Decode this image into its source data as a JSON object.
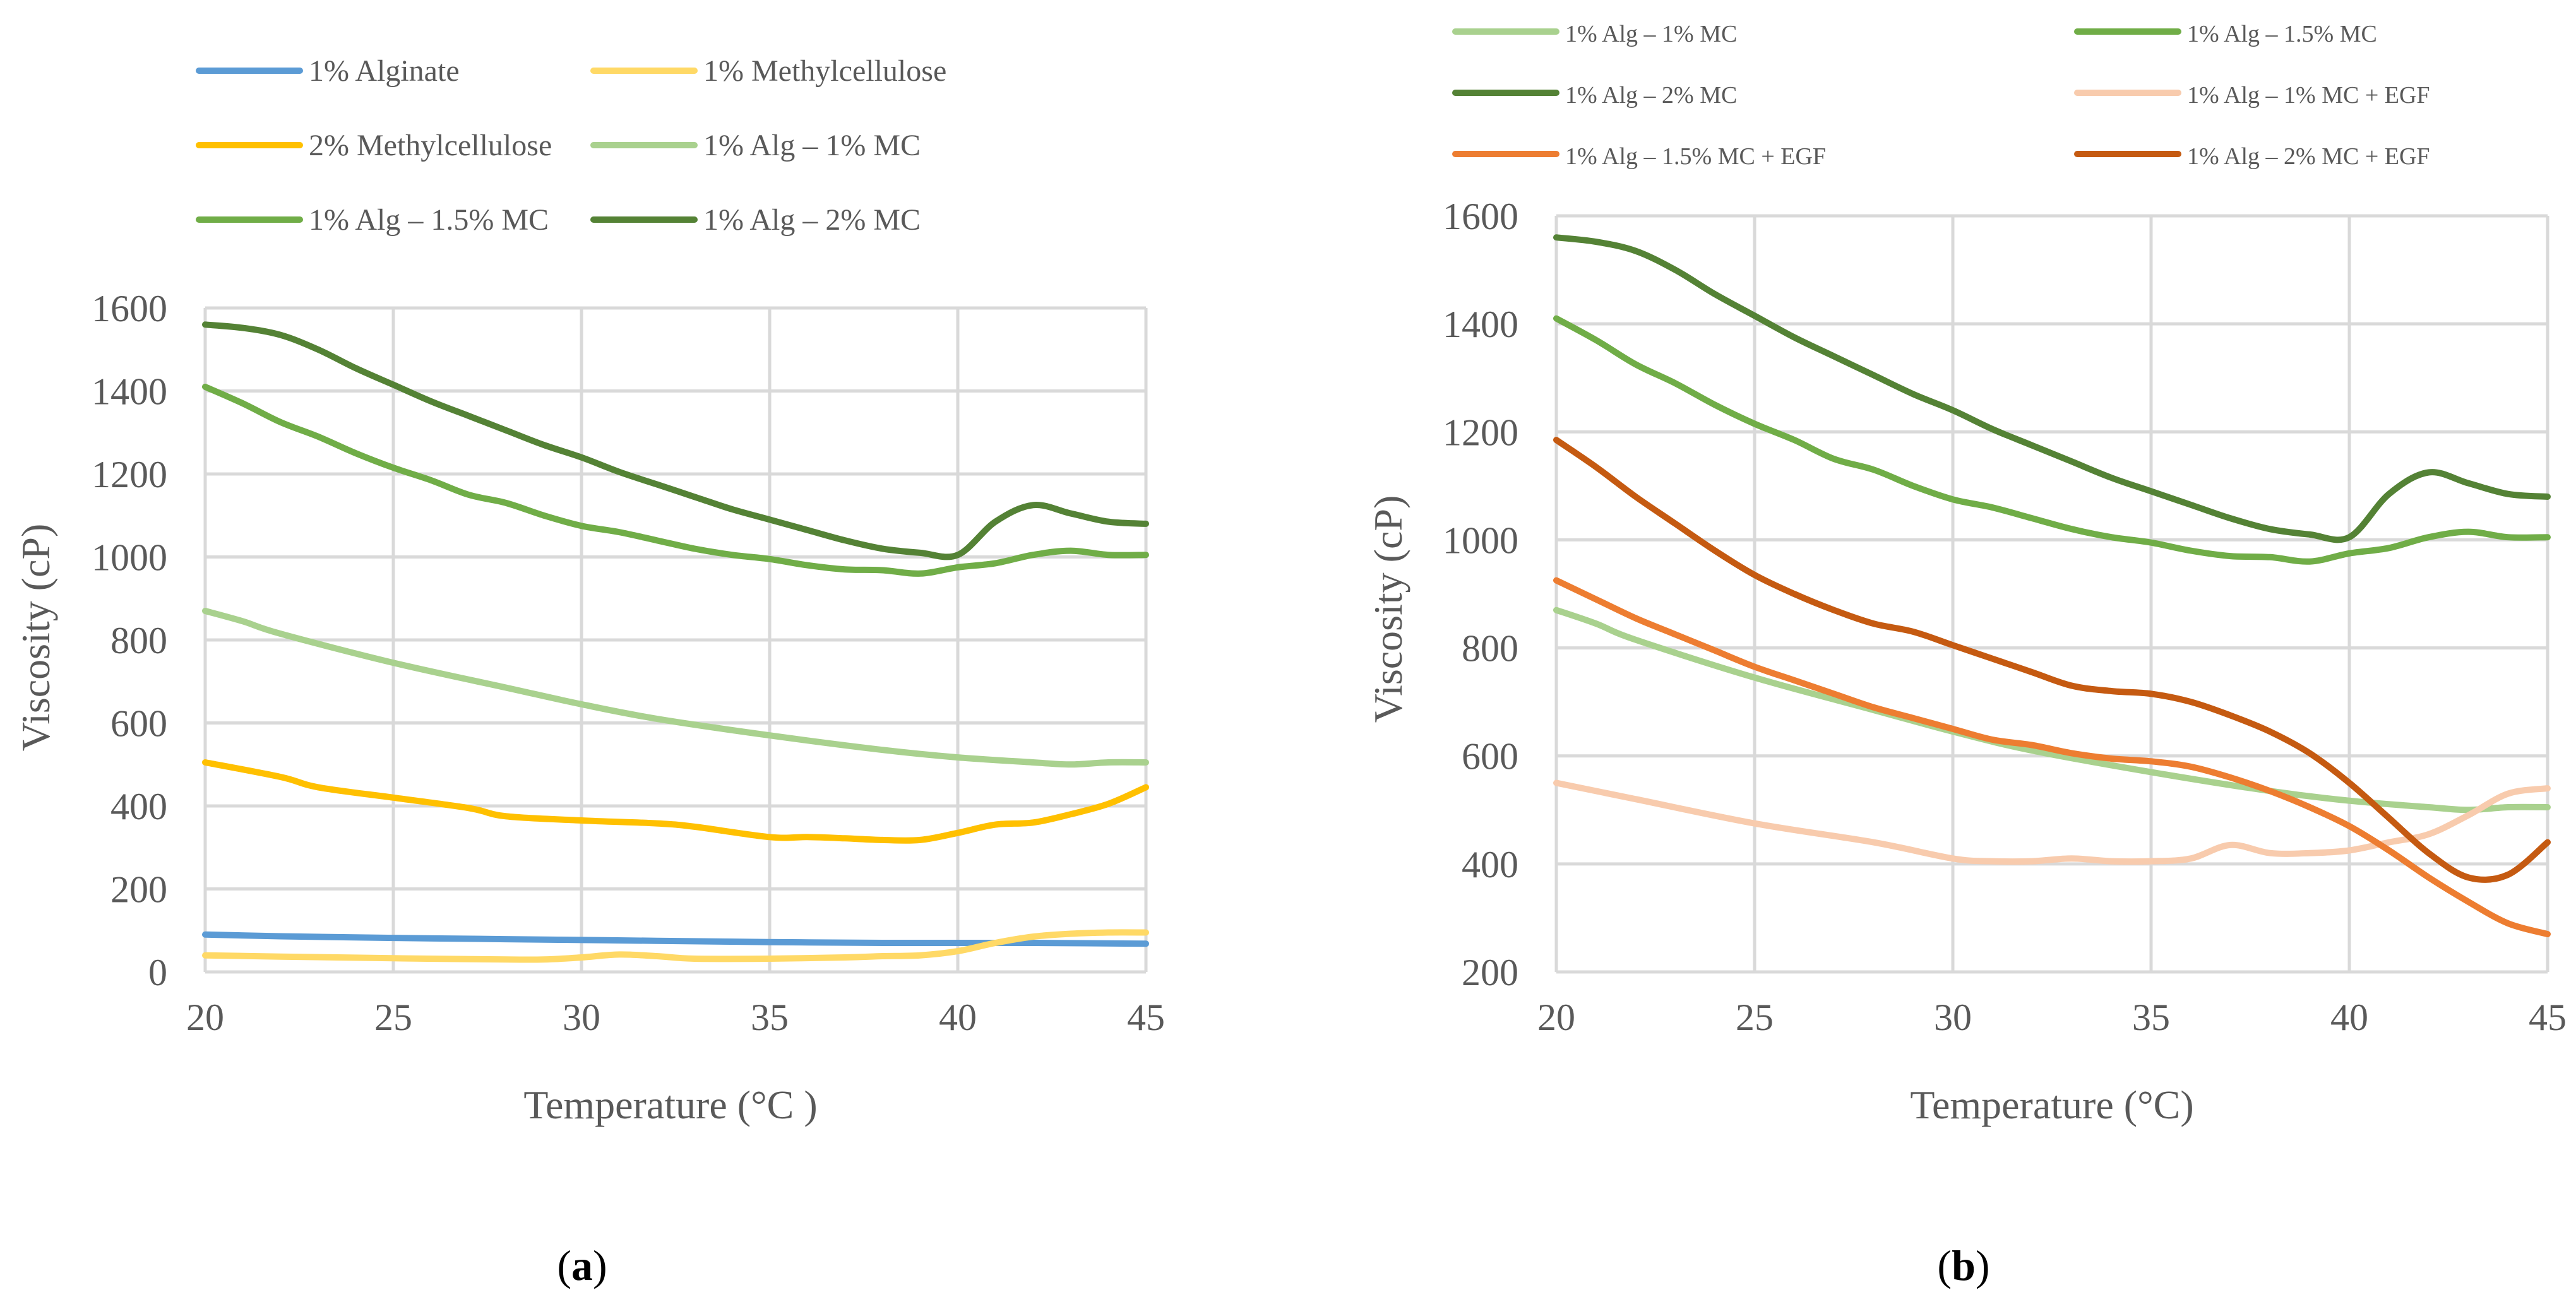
{
  "chart_data": [
    {
      "panel": "a",
      "type": "line",
      "xlabel": "Temperature (°C )",
      "ylabel": "Viscosity (cP)",
      "xlim": [
        20,
        45
      ],
      "ylim": [
        0,
        1600
      ],
      "xticks": [
        20,
        25,
        30,
        35,
        40,
        45
      ],
      "yticks": [
        0,
        200,
        400,
        600,
        800,
        1000,
        1200,
        1400,
        1600
      ],
      "grid": true,
      "legend_position": "top",
      "series": [
        {
          "name": "1% Alginate",
          "color": "#5B9BD5",
          "x": [
            20,
            22,
            25,
            28,
            30,
            32,
            35,
            38,
            40,
            42,
            45
          ],
          "y": [
            90,
            86,
            82,
            79,
            77,
            75,
            72,
            70,
            70,
            70,
            68
          ]
        },
        {
          "name": "1% Methylcellulose",
          "color": "#FFD966",
          "x": [
            20,
            22,
            25,
            28,
            29,
            30,
            31,
            32,
            33,
            35,
            37,
            38,
            39,
            40,
            41,
            42,
            43,
            44,
            45
          ],
          "y": [
            40,
            37,
            33,
            30,
            30,
            35,
            42,
            38,
            32,
            32,
            35,
            38,
            40,
            50,
            70,
            85,
            92,
            95,
            95
          ]
        },
        {
          "name": "2% Methylcellulose",
          "color": "#FFC000",
          "x": [
            20,
            22,
            23,
            25,
            27,
            28,
            30,
            32,
            33,
            35,
            36,
            37,
            38,
            39,
            40,
            41,
            42,
            43,
            44,
            45
          ],
          "y": [
            505,
            470,
            445,
            420,
            395,
            375,
            365,
            358,
            350,
            325,
            325,
            322,
            318,
            318,
            335,
            355,
            360,
            380,
            405,
            445
          ]
        },
        {
          "name": "1% Alg – 1% MC",
          "color": "#A9D18E",
          "x": [
            20,
            21,
            22,
            25,
            28,
            30,
            32,
            35,
            38,
            40,
            42,
            43,
            44,
            45
          ],
          "y": [
            870,
            845,
            815,
            745,
            685,
            645,
            610,
            570,
            535,
            517,
            505,
            500,
            505,
            505
          ]
        },
        {
          "name": "1% Alg – 1.5% MC",
          "color": "#70AD47",
          "x": [
            20,
            21,
            22,
            23,
            24,
            25,
            26,
            27,
            28,
            29,
            30,
            31,
            32,
            33,
            34,
            35,
            36,
            37,
            38,
            39,
            40,
            41,
            42,
            43,
            44,
            45
          ],
          "y": [
            1410,
            1370,
            1325,
            1290,
            1250,
            1215,
            1185,
            1150,
            1130,
            1100,
            1075,
            1060,
            1040,
            1020,
            1005,
            995,
            980,
            970,
            968,
            960,
            975,
            985,
            1005,
            1015,
            1005,
            1005
          ]
        },
        {
          "name": "1% Alg – 2% MC",
          "color": "#548235",
          "x": [
            20,
            21,
            22,
            23,
            24,
            25,
            26,
            27,
            28,
            29,
            30,
            31,
            32,
            33,
            34,
            35,
            36,
            37,
            38,
            39,
            40,
            41,
            42,
            43,
            44,
            45
          ],
          "y": [
            1560,
            1552,
            1535,
            1500,
            1455,
            1415,
            1375,
            1340,
            1305,
            1270,
            1240,
            1205,
            1175,
            1145,
            1115,
            1090,
            1065,
            1040,
            1020,
            1010,
            1005,
            1085,
            1125,
            1105,
            1085,
            1080
          ]
        }
      ]
    },
    {
      "panel": "b",
      "type": "line",
      "xlabel": "Temperature (°C)",
      "ylabel": "Viscosity (cP)",
      "xlim": [
        20,
        45
      ],
      "ylim": [
        200,
        1600
      ],
      "xticks": [
        20,
        25,
        30,
        35,
        40,
        45
      ],
      "yticks": [
        200,
        400,
        600,
        800,
        1000,
        1200,
        1400,
        1600
      ],
      "grid": true,
      "legend_position": "top",
      "series": [
        {
          "name": "1% Alg – 1% MC",
          "color": "#A9D18E",
          "x": [
            20,
            21,
            22,
            25,
            28,
            30,
            32,
            35,
            38,
            40,
            42,
            43,
            44,
            45
          ],
          "y": [
            870,
            845,
            815,
            745,
            685,
            645,
            610,
            570,
            535,
            517,
            505,
            500,
            505,
            505
          ]
        },
        {
          "name": "1% Alg – 1.5% MC",
          "color": "#70AD47",
          "x": [
            20,
            21,
            22,
            23,
            24,
            25,
            26,
            27,
            28,
            29,
            30,
            31,
            32,
            33,
            34,
            35,
            36,
            37,
            38,
            39,
            40,
            41,
            42,
            43,
            44,
            45
          ],
          "y": [
            1410,
            1370,
            1325,
            1290,
            1250,
            1215,
            1185,
            1150,
            1130,
            1100,
            1075,
            1060,
            1040,
            1020,
            1005,
            995,
            980,
            970,
            968,
            960,
            975,
            985,
            1005,
            1015,
            1005,
            1005
          ]
        },
        {
          "name": "1% Alg – 2% MC",
          "color": "#548235",
          "x": [
            20,
            21,
            22,
            23,
            24,
            25,
            26,
            27,
            28,
            29,
            30,
            31,
            32,
            33,
            34,
            35,
            36,
            37,
            38,
            39,
            40,
            41,
            42,
            43,
            44,
            45
          ],
          "y": [
            1560,
            1552,
            1535,
            1500,
            1455,
            1415,
            1375,
            1340,
            1305,
            1270,
            1240,
            1205,
            1175,
            1145,
            1115,
            1090,
            1065,
            1040,
            1020,
            1010,
            1005,
            1085,
            1125,
            1105,
            1085,
            1080
          ]
        },
        {
          "name": "1% Alg – 1% MC + EGF",
          "color": "#F8CBAD",
          "x": [
            20,
            22,
            25,
            28,
            30,
            31,
            32,
            33,
            34,
            35,
            36,
            37,
            38,
            39,
            40,
            41,
            42,
            43,
            44,
            45
          ],
          "y": [
            550,
            520,
            475,
            440,
            410,
            405,
            405,
            410,
            405,
            405,
            410,
            435,
            420,
            420,
            425,
            440,
            455,
            490,
            530,
            540
          ]
        },
        {
          "name": "1% Alg – 1.5% MC + EGF",
          "color": "#ED7D31",
          "x": [
            20,
            21,
            22,
            23,
            24,
            25,
            26,
            27,
            28,
            29,
            30,
            31,
            32,
            33,
            34,
            35,
            36,
            37,
            38,
            39,
            40,
            41,
            42,
            43,
            44,
            45
          ],
          "y": [
            925,
            890,
            855,
            825,
            795,
            765,
            740,
            715,
            690,
            670,
            650,
            630,
            620,
            605,
            595,
            590,
            580,
            560,
            535,
            505,
            470,
            425,
            375,
            330,
            290,
            270
          ]
        },
        {
          "name": "1% Alg – 2% MC + EGF",
          "color": "#C55A11",
          "x": [
            20,
            21,
            22,
            23,
            24,
            25,
            26,
            27,
            28,
            29,
            30,
            31,
            32,
            33,
            34,
            35,
            36,
            37,
            38,
            39,
            40,
            41,
            42,
            43,
            44,
            45
          ],
          "y": [
            1185,
            1135,
            1080,
            1030,
            980,
            935,
            900,
            870,
            845,
            830,
            805,
            780,
            755,
            730,
            720,
            715,
            700,
            675,
            645,
            605,
            550,
            485,
            420,
            375,
            380,
            440
          ]
        }
      ]
    }
  ],
  "panel_labels": {
    "a": {
      "open": "(",
      "letter": "a",
      "close": ")"
    },
    "b": {
      "open": "(",
      "letter": "b",
      "close": ")"
    }
  }
}
